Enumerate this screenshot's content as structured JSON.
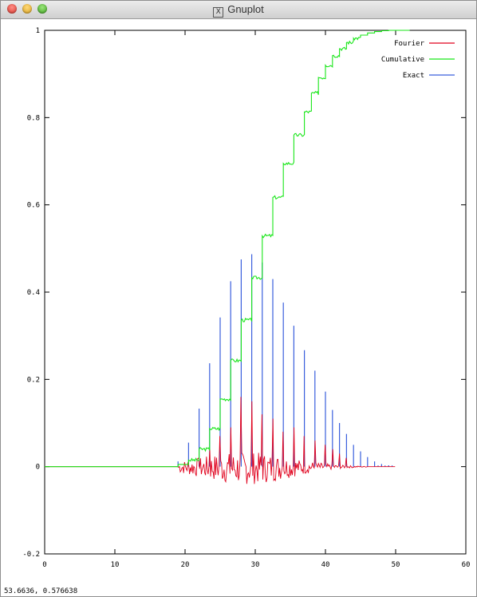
{
  "window": {
    "title": "Gnuplot",
    "title_icon": "x11-icon"
  },
  "status": {
    "coords": "53.6636,  0.576638"
  },
  "chart_data": {
    "type": "line",
    "xlim": [
      0,
      60
    ],
    "ylim": [
      -0.2,
      1
    ],
    "x_ticks": [
      "0",
      "10",
      "20",
      "30",
      "40",
      "50",
      "60"
    ],
    "y_ticks": [
      "-0.2",
      "0",
      "0.2",
      "0.4",
      "0.6",
      "0.8",
      "1"
    ],
    "legend_position": "top-right",
    "series": [
      {
        "name": "Fourier",
        "color": "#e0001c",
        "style": "noisy-line"
      },
      {
        "name": "Cumulative",
        "color": "#19e619",
        "style": "step-line"
      },
      {
        "name": "Exact",
        "color": "#3a5fdd",
        "style": "impulses"
      }
    ],
    "exact_impulses": [
      {
        "x": 19,
        "y": 0.012
      },
      {
        "x": 20.5,
        "y": 0.055
      },
      {
        "x": 22,
        "y": 0.133
      },
      {
        "x": 23.5,
        "y": 0.237
      },
      {
        "x": 25,
        "y": 0.342
      },
      {
        "x": 26.5,
        "y": 0.425
      },
      {
        "x": 28,
        "y": 0.475
      },
      {
        "x": 29.5,
        "y": 0.487
      },
      {
        "x": 31,
        "y": 0.468
      },
      {
        "x": 32.5,
        "y": 0.43
      },
      {
        "x": 34,
        "y": 0.376
      },
      {
        "x": 35.5,
        "y": 0.323
      },
      {
        "x": 37,
        "y": 0.267
      },
      {
        "x": 38.5,
        "y": 0.22
      },
      {
        "x": 40,
        "y": 0.172
      },
      {
        "x": 41,
        "y": 0.13
      },
      {
        "x": 42,
        "y": 0.1
      },
      {
        "x": 43,
        "y": 0.075
      },
      {
        "x": 44,
        "y": 0.05
      },
      {
        "x": 45,
        "y": 0.035
      },
      {
        "x": 46,
        "y": 0.022
      },
      {
        "x": 47,
        "y": 0.012
      },
      {
        "x": 48,
        "y": 0.006
      },
      {
        "x": 49,
        "y": 0.003
      }
    ],
    "fourier_peaks": [
      {
        "x": 22,
        "y": 0.02
      },
      {
        "x": 23.5,
        "y": 0.04
      },
      {
        "x": 25,
        "y": 0.07
      },
      {
        "x": 26.5,
        "y": 0.09
      },
      {
        "x": 28,
        "y": 0.16
      },
      {
        "x": 29.5,
        "y": 0.15
      },
      {
        "x": 31,
        "y": 0.12
      },
      {
        "x": 32.5,
        "y": 0.11
      },
      {
        "x": 34,
        "y": 0.08
      },
      {
        "x": 35.5,
        "y": 0.09
      },
      {
        "x": 37,
        "y": 0.07
      },
      {
        "x": 38.5,
        "y": 0.06
      },
      {
        "x": 40,
        "y": 0.05
      },
      {
        "x": 41,
        "y": 0.04
      },
      {
        "x": 42,
        "y": 0.03
      },
      {
        "x": 43,
        "y": 0.02
      }
    ],
    "cumulative_steps": [
      {
        "x": 0,
        "y": 0
      },
      {
        "x": 19,
        "y": 0.005
      },
      {
        "x": 20.5,
        "y": 0.015
      },
      {
        "x": 22,
        "y": 0.04
      },
      {
        "x": 23.5,
        "y": 0.087
      },
      {
        "x": 25,
        "y": 0.155
      },
      {
        "x": 26.5,
        "y": 0.243
      },
      {
        "x": 28,
        "y": 0.336
      },
      {
        "x": 29.5,
        "y": 0.433
      },
      {
        "x": 31,
        "y": 0.529
      },
      {
        "x": 32.5,
        "y": 0.617
      },
      {
        "x": 34,
        "y": 0.695
      },
      {
        "x": 35.5,
        "y": 0.76
      },
      {
        "x": 37,
        "y": 0.813
      },
      {
        "x": 38,
        "y": 0.856
      },
      {
        "x": 39,
        "y": 0.892
      },
      {
        "x": 40,
        "y": 0.92
      },
      {
        "x": 41,
        "y": 0.942
      },
      {
        "x": 42,
        "y": 0.958
      },
      {
        "x": 43,
        "y": 0.972
      },
      {
        "x": 44,
        "y": 0.982
      },
      {
        "x": 45,
        "y": 0.989
      },
      {
        "x": 46,
        "y": 0.994
      },
      {
        "x": 47,
        "y": 0.997
      },
      {
        "x": 48,
        "y": 0.999
      },
      {
        "x": 49,
        "y": 1.0
      },
      {
        "x": 50,
        "y": 1.0
      }
    ]
  }
}
